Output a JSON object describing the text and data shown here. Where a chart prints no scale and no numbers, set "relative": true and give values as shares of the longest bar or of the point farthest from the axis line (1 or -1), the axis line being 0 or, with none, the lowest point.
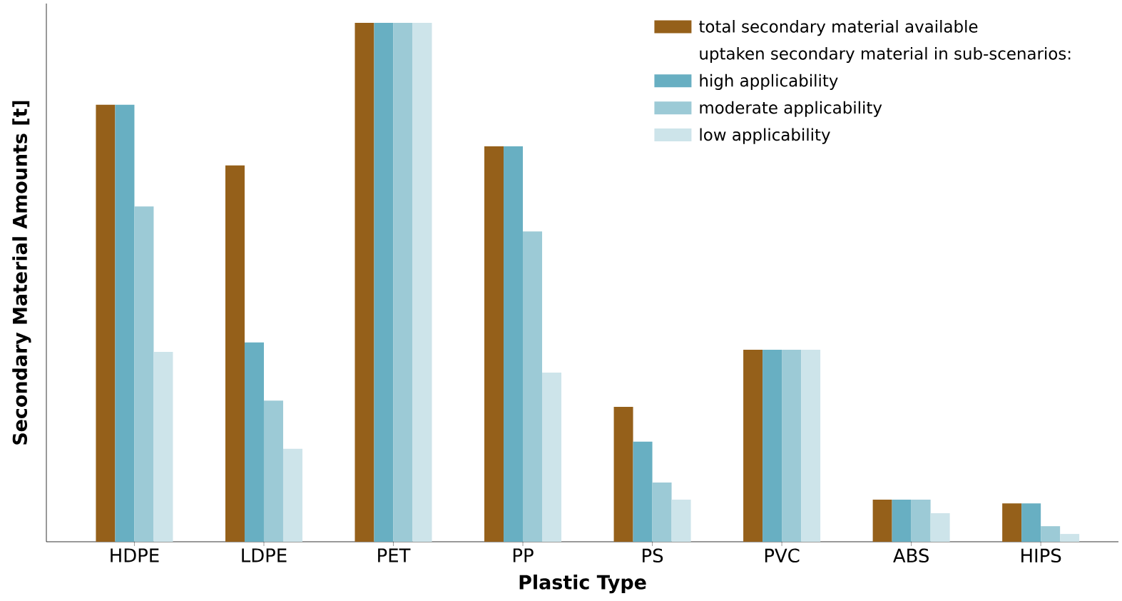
{
  "chart_data": {
    "type": "bar",
    "xlabel": "Plastic Type",
    "ylabel": "Secondary Material Amounts [t]",
    "categories": [
      "HDPE",
      "LDPE",
      "PET",
      "PP",
      "PS",
      "PVC",
      "ABS",
      "HIPS"
    ],
    "relative": true,
    "legend": "top right",
    "annotations": [
      "uptaken secondary material in sub-scenarios:"
    ],
    "series": [
      {
        "name": "total secondary material available",
        "color": "#95601a",
        "values": [
          0.842,
          0.725,
          1,
          0.762,
          0.26,
          0.37,
          0.081,
          0.074
        ]
      },
      {
        "name": "high applicability",
        "color": "#68afc2",
        "values": [
          0.842,
          0.384,
          1,
          0.762,
          0.193,
          0.37,
          0.081,
          0.074
        ]
      },
      {
        "name": "moderate applicability",
        "color": "#9ccad6",
        "values": [
          0.646,
          0.272,
          1,
          0.598,
          0.114,
          0.37,
          0.081,
          0.03
        ]
      },
      {
        "name": "low applicability",
        "color": "#cde4ea",
        "values": [
          0.366,
          0.179,
          1,
          0.326,
          0.081,
          0.37,
          0.055,
          0.015
        ]
      }
    ]
  }
}
